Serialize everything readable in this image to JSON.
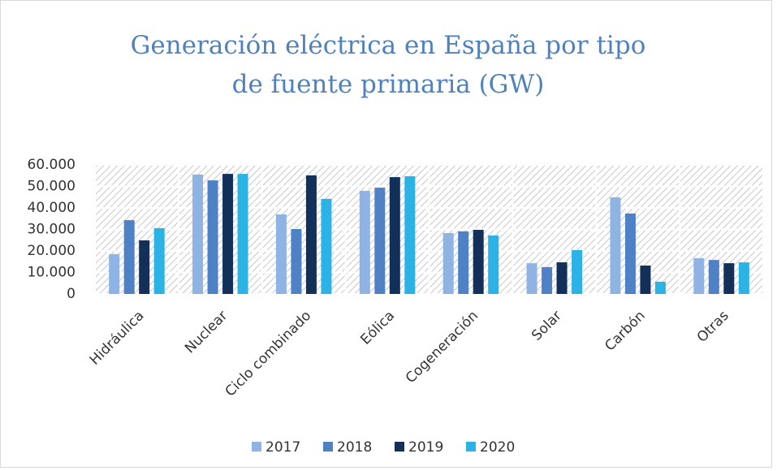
{
  "chart_data": {
    "type": "bar",
    "title": "Generación eléctrica en España por tipo de fuente primaria (GW)",
    "categories": [
      "Hidráulica",
      "Nuclear",
      "Ciclo combinado",
      "Eólica",
      "Cogeneración",
      "Solar",
      "Carbón",
      "Otras"
    ],
    "series": [
      {
        "name": "2017",
        "color": "#8fb4e3",
        "values": [
          18500,
          55500,
          37000,
          47900,
          28300,
          14300,
          44900,
          16600
        ]
      },
      {
        "name": "2018",
        "color": "#4f81c7",
        "values": [
          34300,
          52800,
          30200,
          49400,
          29100,
          12500,
          37400,
          15800
        ]
      },
      {
        "name": "2019",
        "color": "#13305a",
        "values": [
          24900,
          55800,
          55100,
          54300,
          29800,
          14700,
          13200,
          14300
        ]
      },
      {
        "name": "2020",
        "color": "#2bb3e6",
        "values": [
          30600,
          55800,
          44200,
          54700,
          27200,
          20400,
          5700,
          14700
        ]
      }
    ],
    "ylim": [
      0,
      60000
    ],
    "yticks": [
      0,
      {
        "value": 10000,
        "label": "10.000"
      },
      {
        "value": 20000,
        "label": "20.000"
      },
      {
        "value": 30000,
        "label": "30.000"
      },
      {
        "value": 40000,
        "label": "40.000"
      },
      {
        "value": 50000,
        "label": "50.000"
      },
      {
        "value": 60000,
        "label": "60.000"
      }
    ],
    "grid": true,
    "legend": "bottom"
  }
}
